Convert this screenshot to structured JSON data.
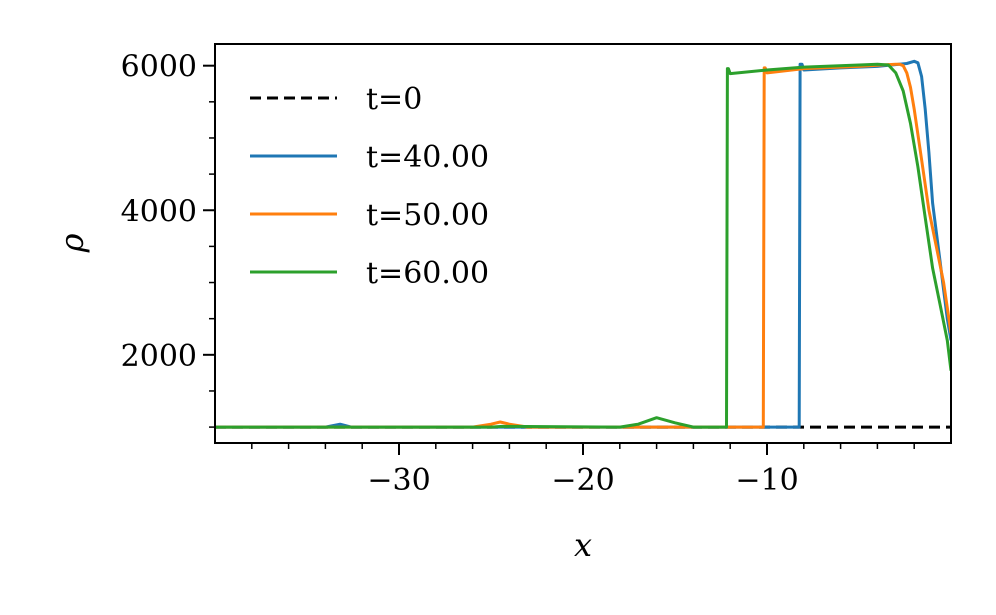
{
  "chart_data": {
    "type": "line",
    "xlabel": "x",
    "ylabel": "ρ",
    "xlim": [
      -40,
      0
    ],
    "ylim": [
      780,
      6300
    ],
    "x_ticks": [
      -30,
      -20,
      -10
    ],
    "x_tick_labels": [
      "−30",
      "−20",
      "−10"
    ],
    "x_minor_ticks": [
      -38,
      -36,
      -34,
      -32,
      -28,
      -26,
      -24,
      -22,
      -18,
      -16,
      -14,
      -12,
      -8,
      -6,
      -4,
      -2
    ],
    "y_ticks": [
      2000,
      4000,
      6000
    ],
    "y_tick_labels": [
      "2000",
      "4000",
      "6000"
    ],
    "y_minor_ticks": [
      1000,
      1500,
      2500,
      3000,
      3500,
      4500,
      5000,
      5500
    ],
    "legend_position": "upper-left",
    "grid": false,
    "series": [
      {
        "name": "t=0",
        "color": "#000000",
        "dash": true,
        "x": [
          -40,
          0
        ],
        "y": [
          1000,
          1000
        ]
      },
      {
        "name": "t=40.00",
        "color": "#1f77b4",
        "dash": false,
        "x": [
          -40,
          -34,
          -33.2,
          -32.6,
          -30,
          -20,
          -10,
          -8.6,
          -8.25,
          -8.2,
          -8.1,
          -8.0,
          -6,
          -4,
          -2.4,
          -2.0,
          -1.8,
          -1.6,
          -1.4,
          -1.2,
          -1.0,
          -0.8,
          -0.6,
          -0.4,
          -0.2,
          0
        ],
        "y": [
          1000,
          1000,
          1040,
          1000,
          1000,
          1000,
          1000,
          1000,
          1000,
          6020,
          6020,
          5940,
          5970,
          5990,
          6030,
          6060,
          6040,
          5850,
          5400,
          4800,
          4100,
          3700,
          3300,
          2900,
          2500,
          2200
        ]
      },
      {
        "name": "t=50.00",
        "color": "#ff7f0e",
        "dash": false,
        "x": [
          -40,
          -26,
          -25,
          -24.5,
          -24,
          -23,
          -20,
          -12,
          -10.2,
          -10.15,
          -10.1,
          -10.0,
          -8,
          -5,
          -3.0,
          -2.8,
          -2.6,
          -2.4,
          -2.2,
          -2.0,
          -1.6,
          -1.2,
          -0.8,
          -0.4,
          0
        ],
        "y": [
          1000,
          1000,
          1040,
          1070,
          1040,
          1000,
          1000,
          1000,
          1000,
          5970,
          5970,
          5900,
          5960,
          5990,
          6020,
          6020,
          6000,
          5900,
          5700,
          5400,
          4700,
          4000,
          3500,
          3000,
          2300
        ]
      },
      {
        "name": "t=60.00",
        "color": "#2ca02c",
        "dash": false,
        "x": [
          -40,
          -34,
          -33,
          -25,
          -24.4,
          -18,
          -17,
          -16,
          -15,
          -14,
          -13,
          -12.2,
          -12.15,
          -12.1,
          -12.0,
          -10,
          -8,
          -5,
          -4.0,
          -3.4,
          -3.0,
          -2.6,
          -2.2,
          -1.8,
          -1.4,
          -1.0,
          -0.6,
          -0.2,
          0
        ],
        "y": [
          1000,
          1000,
          1000,
          1000,
          1010,
          1000,
          1040,
          1130,
          1060,
          1000,
          1000,
          1000,
          5960,
          5960,
          5890,
          5940,
          5980,
          6010,
          6020,
          6010,
          5900,
          5650,
          5200,
          4600,
          3900,
          3200,
          2700,
          2200,
          1780
        ]
      }
    ]
  }
}
